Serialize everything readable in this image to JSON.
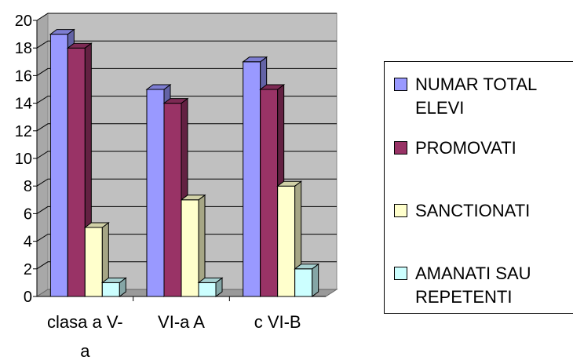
{
  "chart_data": {
    "type": "bar",
    "categories": [
      "clasa a V-a",
      "VI-a A",
      "c VI-B"
    ],
    "category_lines": [
      [
        "clasa a V-",
        "a"
      ],
      [
        "VI-a A"
      ],
      [
        "c VI-B"
      ]
    ],
    "series": [
      {
        "name": "NUMAR TOTAL ELEVI",
        "values": [
          19,
          15,
          17
        ],
        "color": "#9999ff"
      },
      {
        "name": "PROMOVATI",
        "values": [
          18,
          14,
          15
        ],
        "color": "#993366"
      },
      {
        "name": "SANCTIONATI",
        "values": [
          5,
          7,
          8
        ],
        "color": "#ffffcc"
      },
      {
        "name": "AMANATI SAU REPETENTI",
        "values": [
          1,
          1,
          2
        ],
        "color": "#ccffff"
      }
    ],
    "ylim": [
      0,
      20
    ],
    "yticks": [
      "0",
      "2",
      "4",
      "6",
      "8",
      "10",
      "12",
      "14",
      "16",
      "18",
      "20"
    ],
    "grid": true,
    "legend_position": "right",
    "wall_color": "#c0c0c0"
  },
  "legend": {
    "items": [
      {
        "lines": [
          "NUMAR TOTAL",
          "ELEVI"
        ]
      },
      {
        "lines": [
          "PROMOVATI"
        ]
      },
      {
        "lines": [
          "SANCTIONATI"
        ]
      },
      {
        "lines": [
          "AMANATI SAU",
          "REPETENTI"
        ]
      }
    ]
  }
}
